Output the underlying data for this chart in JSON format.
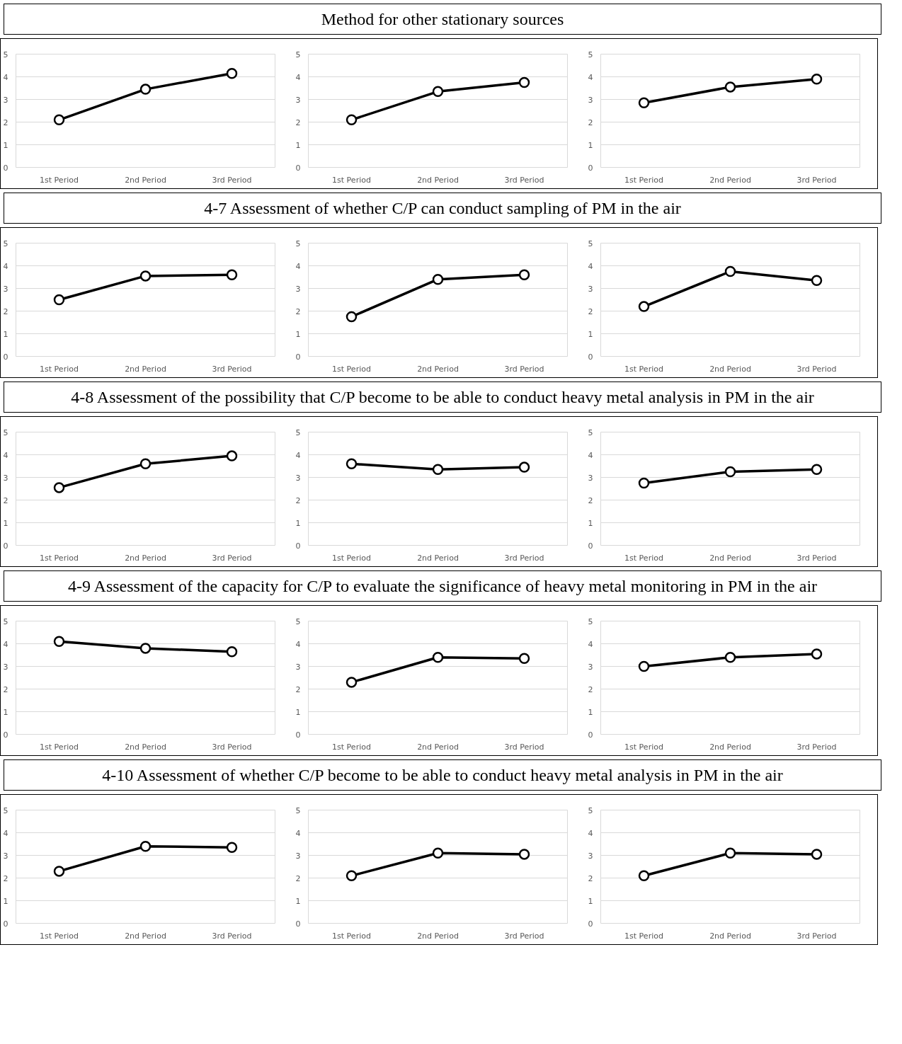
{
  "chart_data": [
    {
      "type": "other",
      "title": "Method for other stationary sources"
    },
    {
      "type": "line",
      "categories": [
        "1st Period",
        "2nd Period",
        "3rd Period"
      ],
      "values": [
        2.1,
        3.45,
        4.15
      ],
      "color": "#000000",
      "ylim": [
        0,
        5
      ],
      "yticks": [
        0,
        1,
        2,
        3,
        4,
        5
      ],
      "grid": "y",
      "marker": "circle"
    },
    {
      "type": "line",
      "categories": [
        "1st Period",
        "2nd Period",
        "3rd Period"
      ],
      "values": [
        2.1,
        3.35,
        3.75
      ],
      "color": "#000000",
      "ylim": [
        0,
        5
      ],
      "yticks": [
        0,
        1,
        2,
        3,
        4,
        5
      ],
      "grid": "y",
      "marker": "circle"
    },
    {
      "type": "line",
      "categories": [
        "1st Period",
        "2nd Period",
        "3rd Period"
      ],
      "values": [
        2.85,
        3.55,
        3.9
      ],
      "color": "#000000",
      "ylim": [
        0,
        5
      ],
      "yticks": [
        0,
        1,
        2,
        3,
        4,
        5
      ],
      "grid": "y",
      "marker": "circle"
    },
    {
      "type": "other",
      "title": "4-7 Assessment of whether C/P can conduct sampling of PM in the air"
    },
    {
      "type": "line",
      "categories": [
        "1st Period",
        "2nd Period",
        "3rd Period"
      ],
      "values": [
        2.5,
        3.55,
        3.6
      ],
      "color": "#000000",
      "ylim": [
        0,
        5
      ],
      "yticks": [
        0,
        1,
        2,
        3,
        4,
        5
      ],
      "grid": "y",
      "marker": "circle"
    },
    {
      "type": "line",
      "categories": [
        "1st Period",
        "2nd Period",
        "3rd Period"
      ],
      "values": [
        1.75,
        3.4,
        3.6
      ],
      "color": "#000000",
      "ylim": [
        0,
        5
      ],
      "yticks": [
        0,
        1,
        2,
        3,
        4,
        5
      ],
      "grid": "y",
      "marker": "circle"
    },
    {
      "type": "line",
      "categories": [
        "1st Period",
        "2nd Period",
        "3rd Period"
      ],
      "values": [
        2.2,
        3.75,
        3.35
      ],
      "color": "#000000",
      "ylim": [
        0,
        5
      ],
      "yticks": [
        0,
        1,
        2,
        3,
        4,
        5
      ],
      "grid": "y",
      "marker": "circle"
    },
    {
      "type": "other",
      "title": "4-8 Assessment of the possibility that C/P become to be able to conduct heavy metal analysis in PM in the air"
    },
    {
      "type": "line",
      "categories": [
        "1st Period",
        "2nd Period",
        "3rd Period"
      ],
      "values": [
        2.55,
        3.6,
        3.95
      ],
      "color": "#000000",
      "ylim": [
        0,
        5
      ],
      "yticks": [
        0,
        1,
        2,
        3,
        4,
        5
      ],
      "grid": "y",
      "marker": "circle"
    },
    {
      "type": "line",
      "categories": [
        "1st Period",
        "2nd Period",
        "3rd Period"
      ],
      "values": [
        3.6,
        3.35,
        3.45
      ],
      "color": "#000000",
      "ylim": [
        0,
        5
      ],
      "yticks": [
        0,
        1,
        2,
        3,
        4,
        5
      ],
      "grid": "y",
      "marker": "circle"
    },
    {
      "type": "line",
      "categories": [
        "1st Period",
        "2nd Period",
        "3rd Period"
      ],
      "values": [
        2.75,
        3.25,
        3.35
      ],
      "color": "#000000",
      "ylim": [
        0,
        5
      ],
      "yticks": [
        0,
        1,
        2,
        3,
        4,
        5
      ],
      "grid": "y",
      "marker": "circle"
    },
    {
      "type": "other",
      "title": "4-9 Assessment of the capacity for C/P to evaluate the significance of heavy metal monitoring in PM in the air"
    },
    {
      "type": "line",
      "categories": [
        "1st Period",
        "2nd Period",
        "3rd Period"
      ],
      "values": [
        4.1,
        3.8,
        3.65
      ],
      "color": "#000000",
      "ylim": [
        0,
        5
      ],
      "yticks": [
        0,
        1,
        2,
        3,
        4,
        5
      ],
      "grid": "y",
      "marker": "circle"
    },
    {
      "type": "line",
      "categories": [
        "1st Period",
        "2nd Period",
        "3rd Period"
      ],
      "values": [
        2.3,
        3.4,
        3.35
      ],
      "color": "#000000",
      "ylim": [
        0,
        5
      ],
      "yticks": [
        0,
        1,
        2,
        3,
        4,
        5
      ],
      "grid": "y",
      "marker": "circle"
    },
    {
      "type": "line",
      "categories": [
        "1st Period",
        "2nd Period",
        "3rd Period"
      ],
      "values": [
        3.0,
        3.4,
        3.55
      ],
      "color": "#000000",
      "ylim": [
        0,
        5
      ],
      "yticks": [
        0,
        1,
        2,
        3,
        4,
        5
      ],
      "grid": "y",
      "marker": "circle"
    },
    {
      "type": "other",
      "title": "4-10 Assessment of whether C/P become to be able to conduct heavy metal analysis in PM in the air"
    },
    {
      "type": "line",
      "categories": [
        "1st Period",
        "2nd Period",
        "3rd Period"
      ],
      "values": [
        2.3,
        3.4,
        3.35
      ],
      "color": "#000000",
      "ylim": [
        0,
        5
      ],
      "yticks": [
        0,
        1,
        2,
        3,
        4,
        5
      ],
      "grid": "y",
      "marker": "circle"
    },
    {
      "type": "line",
      "categories": [
        "1st Period",
        "2nd Period",
        "3rd Period"
      ],
      "values": [
        2.1,
        3.1,
        3.05
      ],
      "color": "#000000",
      "ylim": [
        0,
        5
      ],
      "yticks": [
        0,
        1,
        2,
        3,
        4,
        5
      ],
      "grid": "y",
      "marker": "circle"
    },
    {
      "type": "line",
      "categories": [
        "1st Period",
        "2nd Period",
        "3rd Period"
      ],
      "values": [
        2.1,
        3.1,
        3.05
      ],
      "color": "#000000",
      "ylim": [
        0,
        5
      ],
      "yticks": [
        0,
        1,
        2,
        3,
        4,
        5
      ],
      "grid": "y",
      "marker": "circle"
    }
  ]
}
